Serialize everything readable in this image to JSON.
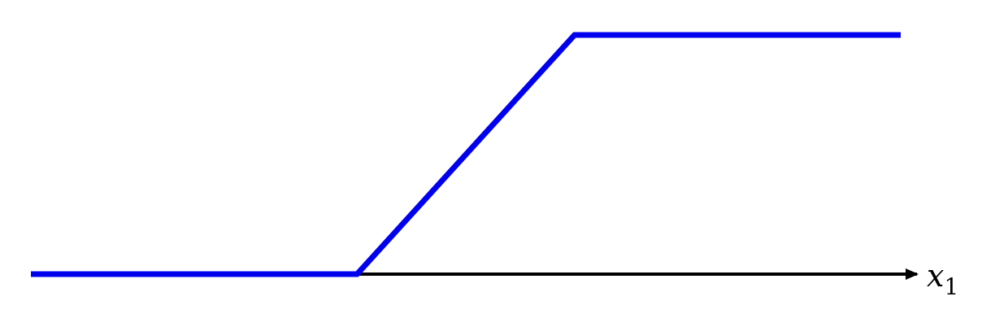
{
  "chart_data": {
    "type": "line",
    "title": "",
    "xlabel": {
      "base": "x",
      "subscript": "1"
    },
    "ylabel": "",
    "grid": false,
    "legend": "none",
    "x_axis": {
      "arrow": true,
      "range": [
        0,
        10
      ]
    },
    "ylim": [
      0,
      1
    ],
    "series": [
      {
        "color": "#0000ee",
        "points": [
          {
            "x": 0,
            "y": 0
          },
          {
            "x": 3.75,
            "y": 0
          },
          {
            "x": 6.25,
            "y": 1
          },
          {
            "x": 10,
            "y": 1
          }
        ]
      }
    ],
    "axis_color": "#000000"
  }
}
